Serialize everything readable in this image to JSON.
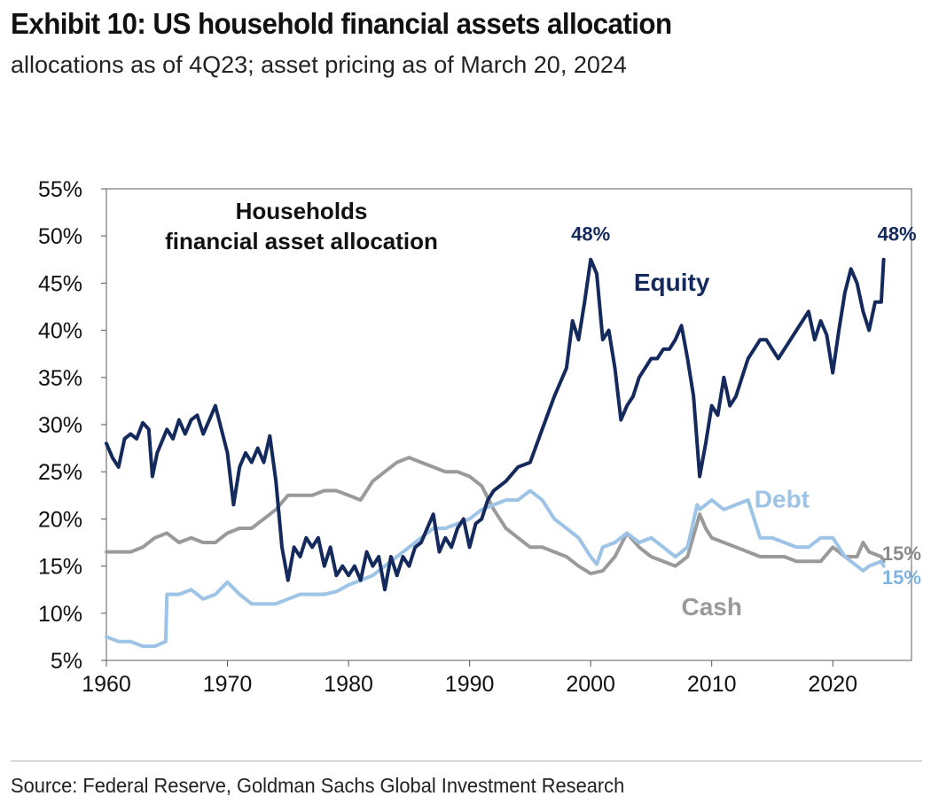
{
  "title": "Exhibit 10: US household financial assets allocation",
  "subtitle": "allocations as of 4Q23; asset pricing as of March 20, 2024",
  "source": "Source: Federal Reserve, Goldman Sachs Global Investment Research",
  "chart_data": {
    "type": "line",
    "title": "",
    "inner_title_lines": [
      "Households",
      "financial asset allocation"
    ],
    "xlabel": "",
    "ylabel": "",
    "xlim": [
      1960,
      2026.5
    ],
    "ylim": [
      5,
      55
    ],
    "x_ticks": [
      1960,
      1970,
      1980,
      1990,
      2000,
      2010,
      2020
    ],
    "y_ticks": [
      5,
      10,
      15,
      20,
      25,
      30,
      35,
      40,
      45,
      50,
      55
    ],
    "y_tick_suffix": "%",
    "grid": false,
    "series": [
      {
        "name": "Equity",
        "color": "#14295c",
        "points": [
          [
            1960,
            28
          ],
          [
            1960.5,
            26.5
          ],
          [
            1961,
            25.5
          ],
          [
            1961.5,
            28.5
          ],
          [
            1962,
            29
          ],
          [
            1962.5,
            28.5
          ],
          [
            1963,
            30.2
          ],
          [
            1963.5,
            29.5
          ],
          [
            1963.8,
            24.5
          ],
          [
            1964.2,
            27
          ],
          [
            1965,
            29.5
          ],
          [
            1965.5,
            28.5
          ],
          [
            1966,
            30.5
          ],
          [
            1966.5,
            29
          ],
          [
            1967,
            30.5
          ],
          [
            1967.5,
            31
          ],
          [
            1968,
            29
          ],
          [
            1968.5,
            30.5
          ],
          [
            1969,
            32
          ],
          [
            1969.5,
            29.5
          ],
          [
            1970,
            27
          ],
          [
            1970.5,
            21.5
          ],
          [
            1971,
            25.5
          ],
          [
            1971.5,
            27
          ],
          [
            1972,
            26
          ],
          [
            1972.5,
            27.5
          ],
          [
            1973,
            26
          ],
          [
            1973.5,
            28.8
          ],
          [
            1974,
            24
          ],
          [
            1974.5,
            17
          ],
          [
            1975,
            13.5
          ],
          [
            1975.5,
            17
          ],
          [
            1976,
            16
          ],
          [
            1976.5,
            18
          ],
          [
            1977,
            17
          ],
          [
            1977.5,
            18
          ],
          [
            1978,
            15
          ],
          [
            1978.5,
            17
          ],
          [
            1979,
            14
          ],
          [
            1979.5,
            15
          ],
          [
            1980,
            14
          ],
          [
            1980.5,
            15
          ],
          [
            1981,
            13.5
          ],
          [
            1981.5,
            16.5
          ],
          [
            1982,
            15
          ],
          [
            1982.5,
            16
          ],
          [
            1983,
            12.5
          ],
          [
            1983.5,
            16
          ],
          [
            1984,
            14
          ],
          [
            1984.5,
            16
          ],
          [
            1985,
            15
          ],
          [
            1985.5,
            17
          ],
          [
            1986,
            17.5
          ],
          [
            1986.5,
            19
          ],
          [
            1987,
            20.5
          ],
          [
            1987.5,
            16.5
          ],
          [
            1988,
            18
          ],
          [
            1988.5,
            17
          ],
          [
            1989,
            19
          ],
          [
            1989.5,
            20
          ],
          [
            1990,
            17
          ],
          [
            1990.5,
            19.5
          ],
          [
            1991,
            20
          ],
          [
            1991.5,
            22
          ],
          [
            1992,
            23
          ],
          [
            1993,
            24
          ],
          [
            1994,
            25.5
          ],
          [
            1995,
            26
          ],
          [
            1996,
            29.5
          ],
          [
            1997,
            33
          ],
          [
            1998,
            36
          ],
          [
            1998.5,
            41
          ],
          [
            1999,
            39
          ],
          [
            1999.5,
            43
          ],
          [
            2000,
            47.5
          ],
          [
            2000.5,
            46
          ],
          [
            2001,
            39
          ],
          [
            2001.5,
            40
          ],
          [
            2002,
            36
          ],
          [
            2002.5,
            30.5
          ],
          [
            2003,
            32
          ],
          [
            2003.5,
            33
          ],
          [
            2004,
            35
          ],
          [
            2004.5,
            36
          ],
          [
            2005,
            37
          ],
          [
            2005.5,
            37
          ],
          [
            2006,
            38
          ],
          [
            2006.5,
            38
          ],
          [
            2007,
            39
          ],
          [
            2007.5,
            40.5
          ],
          [
            2008,
            37
          ],
          [
            2008.5,
            33
          ],
          [
            2009,
            24.5
          ],
          [
            2009.5,
            28
          ],
          [
            2010,
            32
          ],
          [
            2010.5,
            31
          ],
          [
            2011,
            35
          ],
          [
            2011.5,
            32
          ],
          [
            2012,
            33
          ],
          [
            2012.5,
            35
          ],
          [
            2013,
            37
          ],
          [
            2013.5,
            38
          ],
          [
            2014,
            39
          ],
          [
            2014.5,
            39
          ],
          [
            2015,
            38
          ],
          [
            2015.5,
            37
          ],
          [
            2016,
            38
          ],
          [
            2016.5,
            39
          ],
          [
            2017,
            40
          ],
          [
            2017.5,
            41
          ],
          [
            2018,
            42
          ],
          [
            2018.5,
            39
          ],
          [
            2019,
            41
          ],
          [
            2019.5,
            39.5
          ],
          [
            2020,
            35.5
          ],
          [
            2020.5,
            40
          ],
          [
            2021,
            44
          ],
          [
            2021.5,
            46.5
          ],
          [
            2022,
            45
          ],
          [
            2022.5,
            42
          ],
          [
            2023,
            40
          ],
          [
            2023.5,
            43
          ],
          [
            2024,
            43
          ],
          [
            2024.2,
            47.5
          ]
        ]
      },
      {
        "name": "Debt",
        "color": "#9dc3e6",
        "points": [
          [
            1960,
            7.5
          ],
          [
            1961,
            7
          ],
          [
            1962,
            7
          ],
          [
            1963,
            6.5
          ],
          [
            1964,
            6.5
          ],
          [
            1964.9,
            7
          ],
          [
            1965,
            12
          ],
          [
            1966,
            12
          ],
          [
            1967,
            12.5
          ],
          [
            1968,
            11.5
          ],
          [
            1969,
            12
          ],
          [
            1970,
            13.3
          ],
          [
            1971,
            12
          ],
          [
            1972,
            11
          ],
          [
            1973,
            11
          ],
          [
            1974,
            11
          ],
          [
            1975,
            11.5
          ],
          [
            1976,
            12
          ],
          [
            1977,
            12
          ],
          [
            1978,
            12
          ],
          [
            1979,
            12.3
          ],
          [
            1980,
            13
          ],
          [
            1981,
            13.5
          ],
          [
            1982,
            14
          ],
          [
            1983,
            15
          ],
          [
            1984,
            16
          ],
          [
            1985,
            17
          ],
          [
            1986,
            18
          ],
          [
            1987,
            19
          ],
          [
            1988,
            19
          ],
          [
            1989,
            19.5
          ],
          [
            1990,
            20
          ],
          [
            1991,
            21
          ],
          [
            1992,
            21.5
          ],
          [
            1993,
            22
          ],
          [
            1994,
            22
          ],
          [
            1995,
            23
          ],
          [
            1996,
            22
          ],
          [
            1997,
            20
          ],
          [
            1998,
            19
          ],
          [
            1999,
            18
          ],
          [
            2000,
            16
          ],
          [
            2000.5,
            15.2
          ],
          [
            2001,
            17
          ],
          [
            2002,
            17.5
          ],
          [
            2003,
            18.5
          ],
          [
            2004,
            17.5
          ],
          [
            2005,
            18
          ],
          [
            2006,
            17
          ],
          [
            2007,
            16
          ],
          [
            2008,
            17
          ],
          [
            2008.8,
            21.5
          ],
          [
            2009,
            21
          ],
          [
            2010,
            22
          ],
          [
            2011,
            21
          ],
          [
            2012,
            21.5
          ],
          [
            2013,
            22
          ],
          [
            2013.5,
            20
          ],
          [
            2014,
            18
          ],
          [
            2015,
            18
          ],
          [
            2016,
            17.5
          ],
          [
            2017,
            17
          ],
          [
            2018,
            17
          ],
          [
            2019,
            18
          ],
          [
            2020,
            18
          ],
          [
            2020.5,
            17
          ],
          [
            2021,
            16
          ],
          [
            2022,
            15
          ],
          [
            2022.5,
            14.5
          ],
          [
            2023,
            15
          ],
          [
            2024,
            15.5
          ],
          [
            2024.2,
            15
          ]
        ]
      },
      {
        "name": "Cash",
        "color": "#9a9a9a",
        "points": [
          [
            1960,
            16.5
          ],
          [
            1961,
            16.5
          ],
          [
            1962,
            16.5
          ],
          [
            1963,
            17
          ],
          [
            1964,
            18
          ],
          [
            1965,
            18.5
          ],
          [
            1966,
            17.5
          ],
          [
            1967,
            18
          ],
          [
            1968,
            17.5
          ],
          [
            1969,
            17.5
          ],
          [
            1970,
            18.5
          ],
          [
            1971,
            19
          ],
          [
            1972,
            19
          ],
          [
            1973,
            20
          ],
          [
            1974,
            21
          ],
          [
            1975,
            22.5
          ],
          [
            1976,
            22.5
          ],
          [
            1977,
            22.5
          ],
          [
            1978,
            23
          ],
          [
            1979,
            23
          ],
          [
            1980,
            22.5
          ],
          [
            1981,
            22
          ],
          [
            1982,
            24
          ],
          [
            1983,
            25
          ],
          [
            1984,
            26
          ],
          [
            1985,
            26.5
          ],
          [
            1986,
            26
          ],
          [
            1987,
            25.5
          ],
          [
            1988,
            25
          ],
          [
            1989,
            25
          ],
          [
            1990,
            24.5
          ],
          [
            1991,
            23.5
          ],
          [
            1992,
            21
          ],
          [
            1993,
            19
          ],
          [
            1994,
            18
          ],
          [
            1995,
            17
          ],
          [
            1996,
            17
          ],
          [
            1997,
            16.5
          ],
          [
            1998,
            16
          ],
          [
            1999,
            15
          ],
          [
            2000,
            14.2
          ],
          [
            2001,
            14.5
          ],
          [
            2002,
            16
          ],
          [
            2003,
            18.5
          ],
          [
            2004,
            17
          ],
          [
            2005,
            16
          ],
          [
            2006,
            15.5
          ],
          [
            2007,
            15
          ],
          [
            2008,
            16
          ],
          [
            2009,
            20.5
          ],
          [
            2009.5,
            19
          ],
          [
            2010,
            18
          ],
          [
            2011,
            17.5
          ],
          [
            2012,
            17
          ],
          [
            2013,
            16.5
          ],
          [
            2014,
            16
          ],
          [
            2015,
            16
          ],
          [
            2016,
            16
          ],
          [
            2017,
            15.5
          ],
          [
            2018,
            15.5
          ],
          [
            2019,
            15.5
          ],
          [
            2020,
            17
          ],
          [
            2020.5,
            16.5
          ],
          [
            2021,
            16
          ],
          [
            2022,
            16
          ],
          [
            2022.5,
            17.5
          ],
          [
            2023,
            16.5
          ],
          [
            2024,
            16
          ],
          [
            2024.2,
            15.5
          ]
        ]
      }
    ],
    "annotations": [
      {
        "text": "48%",
        "x": 2000,
        "y": 49.5,
        "color": "#14295c",
        "anchor": "middle"
      },
      {
        "text": "48%",
        "x": 2025.3,
        "y": 49.5,
        "color": "#14295c",
        "anchor": "middle"
      },
      {
        "text": "Equity",
        "x": 2006.7,
        "y": 44.2,
        "color": "#14295c",
        "anchor": "middle"
      },
      {
        "text": "Debt",
        "x": 2015.8,
        "y": 21.2,
        "color": "#9dc3e6",
        "anchor": "middle"
      },
      {
        "text": "Cash",
        "x": 2010,
        "y": 9.8,
        "color": "#9a9a9a",
        "anchor": "middle"
      },
      {
        "text": "15%",
        "x": 2027.3,
        "y": 15.6,
        "color": "#8a8a8a",
        "anchor": "end"
      },
      {
        "text": "15%",
        "x": 2027.3,
        "y": 13.1,
        "color": "#7fb3e0",
        "anchor": "end"
      }
    ]
  }
}
